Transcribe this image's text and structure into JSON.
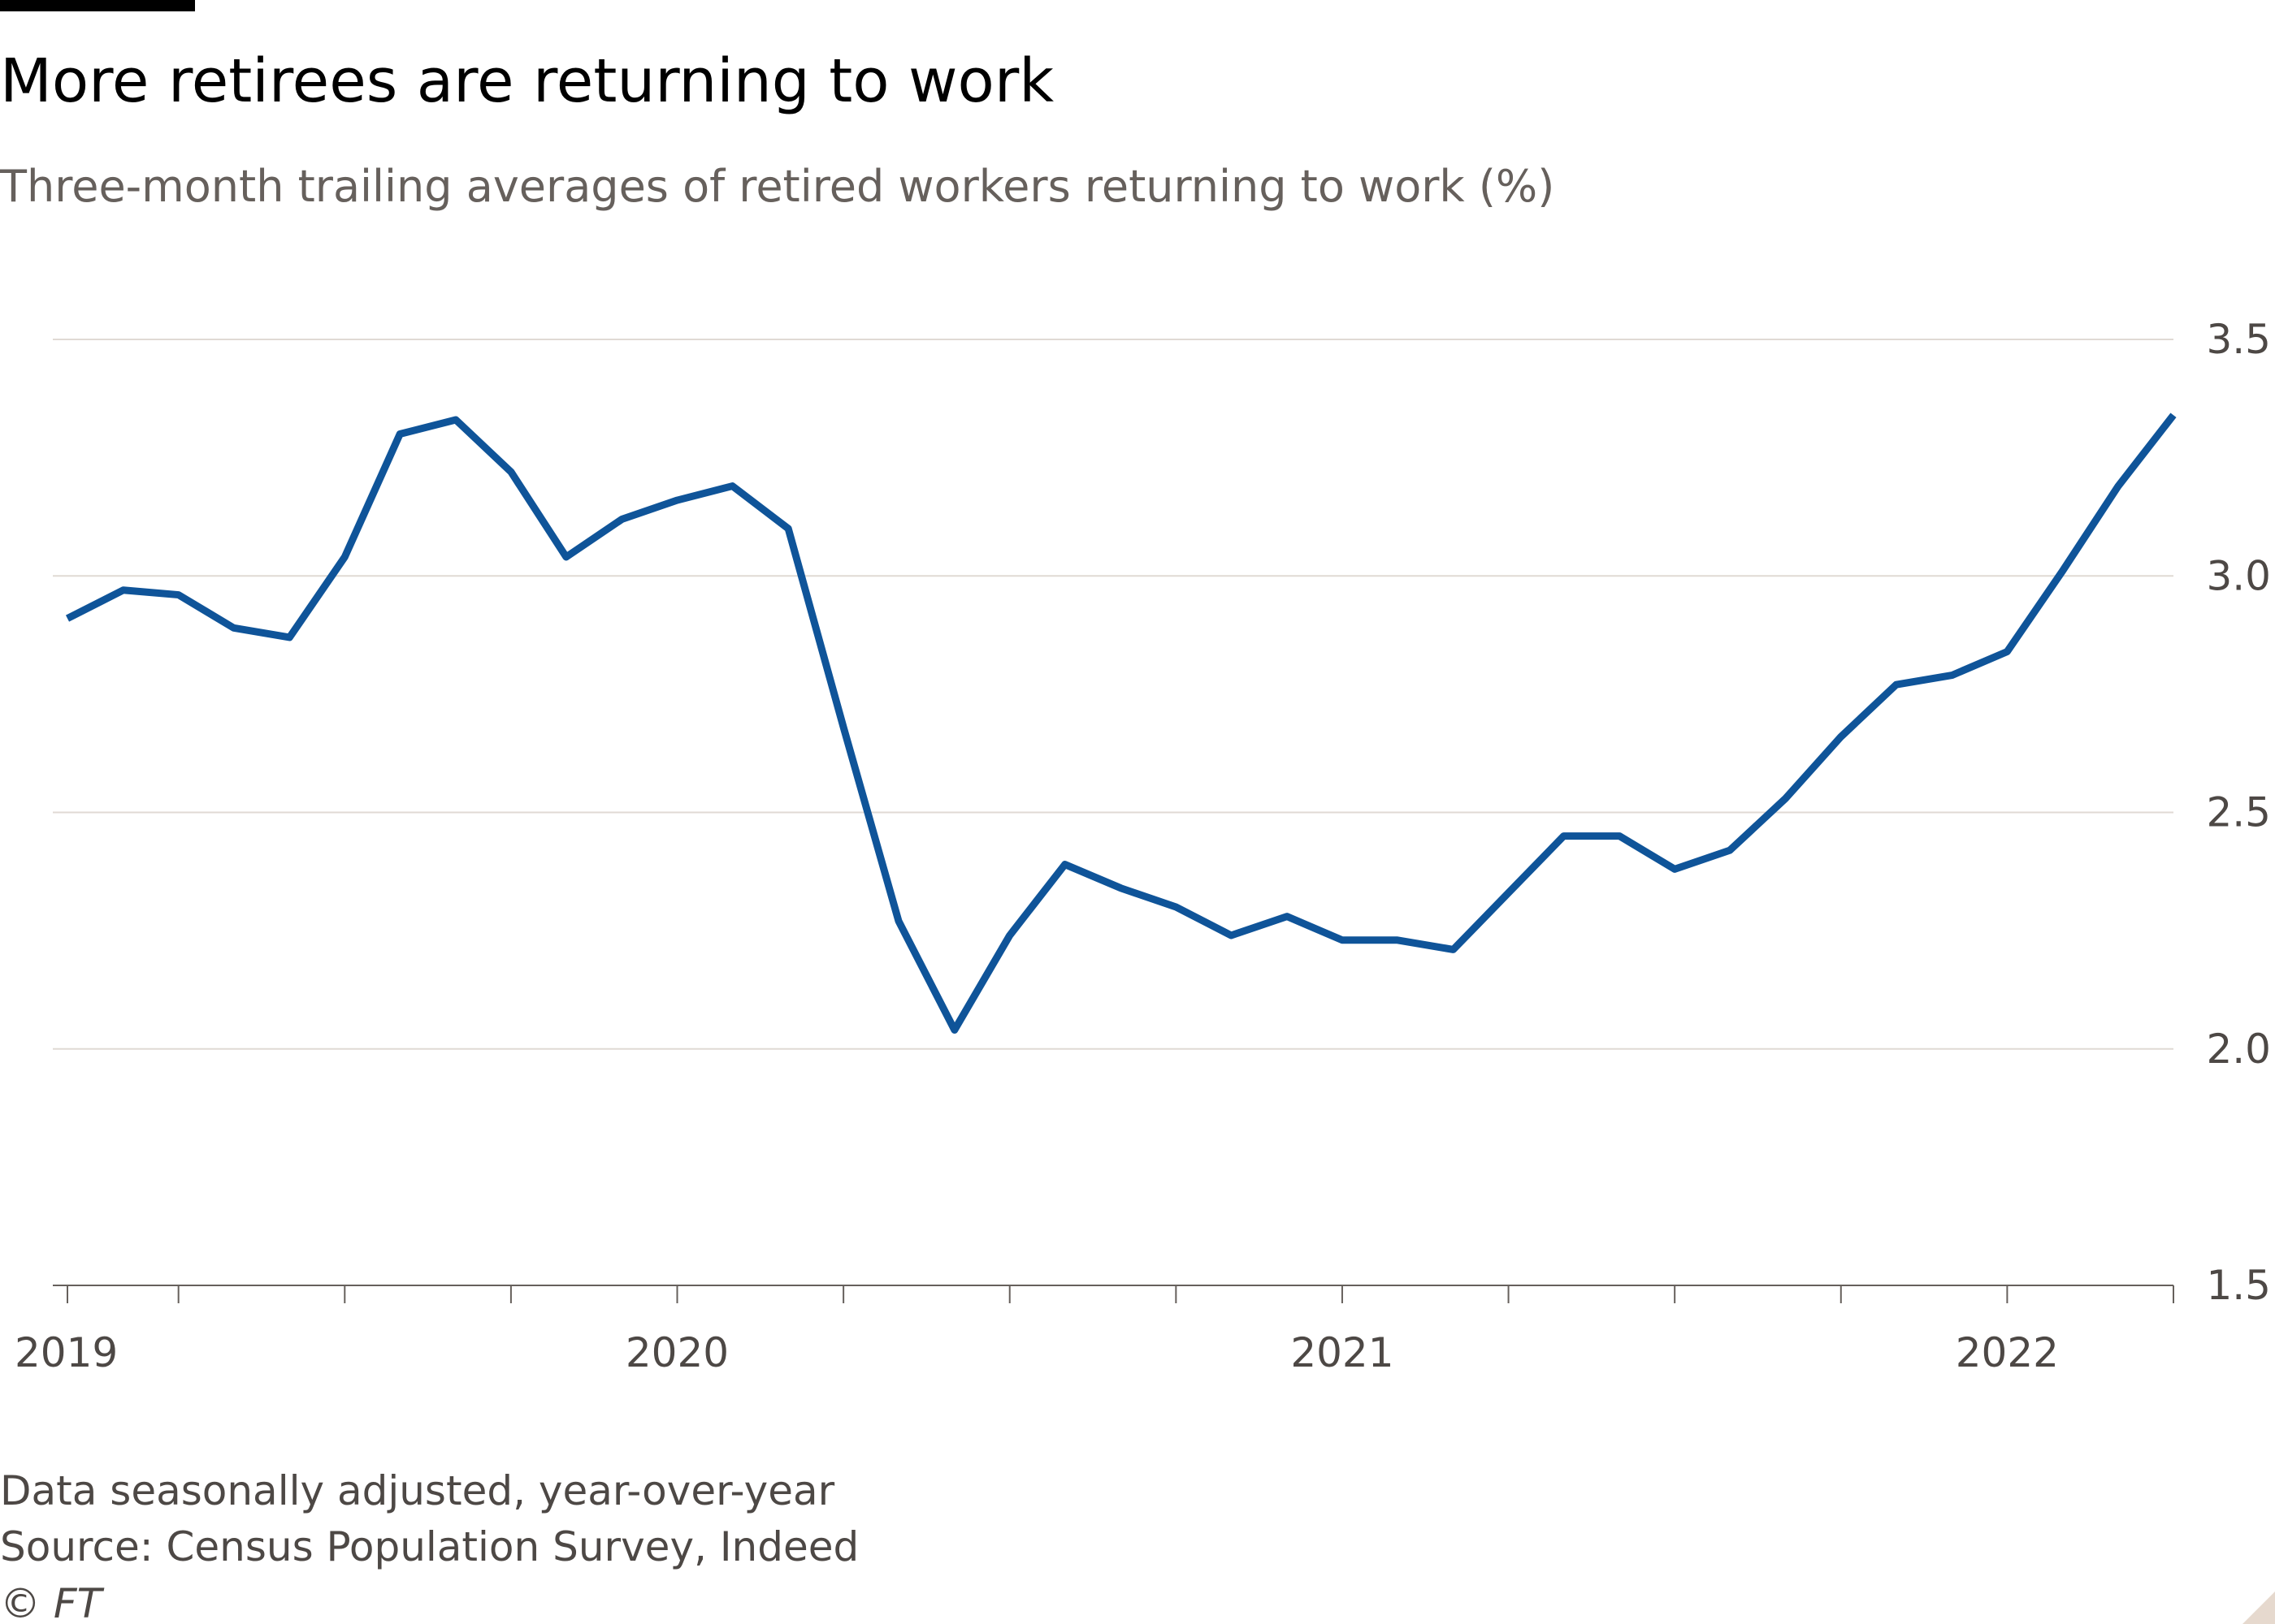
{
  "chart_data": {
    "type": "line",
    "title": "More retirees are returning to work",
    "subtitle": "Three-month trailing averages of retired workers returning to work (%)",
    "notes": [
      "Data seasonally adjusted, year-over-year",
      "Source: Census Population Survey, Indeed",
      "© FT"
    ],
    "x": [
      2019.083,
      2019.167,
      2019.25,
      2019.333,
      2019.417,
      2019.5,
      2019.583,
      2019.667,
      2019.75,
      2019.833,
      2019.917,
      2020.0,
      2020.083,
      2020.167,
      2020.25,
      2020.333,
      2020.417,
      2020.5,
      2020.583,
      2020.667,
      2020.75,
      2020.833,
      2020.917,
      2021.0,
      2021.083,
      2021.167,
      2021.25,
      2021.333,
      2021.417,
      2021.5,
      2021.583,
      2021.667,
      2021.75,
      2021.833,
      2021.917,
      2022.0,
      2022.083,
      2022.167,
      2022.25
    ],
    "series": [
      {
        "name": "Retired workers returning to work",
        "color": "#0f5499",
        "values": [
          2.91,
          2.97,
          2.96,
          2.89,
          2.87,
          3.04,
          3.3,
          3.33,
          3.22,
          3.04,
          3.12,
          3.16,
          3.19,
          3.1,
          2.68,
          2.27,
          2.04,
          2.24,
          2.39,
          2.34,
          2.3,
          2.24,
          2.28,
          2.23,
          2.23,
          2.21,
          2.33,
          2.45,
          2.45,
          2.38,
          2.42,
          2.53,
          2.66,
          2.77,
          2.79,
          2.84,
          3.01,
          3.19,
          3.34
        ]
      }
    ],
    "xlim": [
      2019.083,
      2022.25
    ],
    "xticks": [
      {
        "value": 2019.083,
        "label": "2019"
      },
      2020,
      2021,
      2022
    ],
    "xminorticks": [
      2019.25,
      2019.5,
      2019.75,
      2020.25,
      2020.5,
      2020.75,
      2021.25,
      2021.5,
      2021.75,
      2022.25
    ],
    "ylim": [
      1.5,
      3.5
    ],
    "yticks": [
      {
        "value": 1.5,
        "label": "1.5"
      },
      {
        "value": 2.0,
        "label": "2.0"
      },
      {
        "value": 2.5,
        "label": "2.5"
      },
      {
        "value": 3.0,
        "label": "3.0"
      },
      {
        "value": 3.5,
        "label": "3.5"
      }
    ],
    "grid": true
  }
}
